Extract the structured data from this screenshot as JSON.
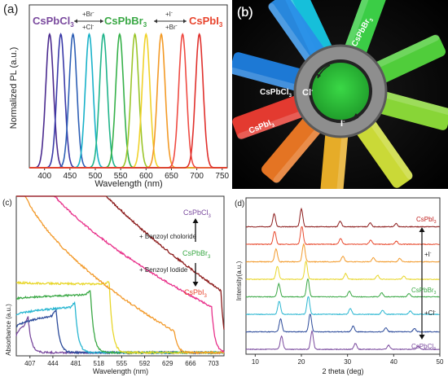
{
  "chart_data": [
    {
      "panel": "(a)",
      "type": "line",
      "xlabel": "Wavelength (nm)",
      "ylabel": "Normalized PL (a.u.)",
      "xlim": [
        370,
        760
      ],
      "ylim": [
        0,
        1.1
      ],
      "xticks": [
        400,
        450,
        500,
        550,
        600,
        650,
        700,
        750
      ],
      "fwhm_nm": 18,
      "series": [
        {
          "peak": 410,
          "color": "#4b2b8f"
        },
        {
          "peak": 432,
          "color": "#3a3aa8"
        },
        {
          "peak": 456,
          "color": "#2e5fb5"
        },
        {
          "peak": 488,
          "color": "#19b2c9"
        },
        {
          "peak": 516,
          "color": "#20b48a"
        },
        {
          "peak": 548,
          "color": "#36b14a"
        },
        {
          "peak": 578,
          "color": "#9bc52b"
        },
        {
          "peak": 600,
          "color": "#f0d22b"
        },
        {
          "peak": 630,
          "color": "#f39a26"
        },
        {
          "peak": 672,
          "color": "#ef4b43"
        },
        {
          "peak": 705,
          "color": "#e0302c"
        }
      ],
      "annotations": {
        "left_name": "CsPbCl",
        "left_sub": "3",
        "mid_name": "CsPbBr",
        "mid_sub": "3",
        "right_name": "CsPbI",
        "right_sub": "3",
        "a1_top": "+Br",
        "a1_top_sup": "-",
        "a1_bot": "+Cl",
        "a1_bot_sup": "-",
        "a2_top": "+I",
        "a2_top_sup": "-",
        "a2_bot": "+Br",
        "a2_bot_sup": "-"
      },
      "colors": {
        "left": "#7a4a9e",
        "mid": "#3aa845",
        "right": "#e8452e"
      }
    },
    {
      "panel": "(b)",
      "type": "photo",
      "labels": {
        "br": "CsPbBr",
        "br_sub": "3",
        "cl": "CsPbCl",
        "cl_sub": "3",
        "i": "CsPbI",
        "i_sub": "3",
        "cl_arrow": "Cl",
        "cl_arrow_sup": "-",
        "i_arrow": "I",
        "i_arrow_sup": "-"
      }
    },
    {
      "panel": "(c)",
      "type": "line",
      "xlabel": "Wavelength (nm)",
      "ylabel": "Absorbance (a.u.)",
      "xlim": [
        385,
        720
      ],
      "xticks": [
        407,
        444,
        481,
        518,
        555,
        592,
        629,
        666,
        703
      ],
      "annotations": {
        "top": "CsPbCl",
        "top_sub": "3",
        "plus_chloride": "+ Benzoyl choloride",
        "mid": "CsPbBr",
        "mid_sub": "3",
        "plus_iodide": "+ Benzoyl Iodide",
        "bottom": "CsPbI",
        "bottom_sub": "3"
      },
      "series": [
        {
          "color": "#7a4a9e",
          "edge": 405
        },
        {
          "color": "#2b4a9a",
          "edge": 450
        },
        {
          "color": "#29b6d1",
          "edge": 480
        },
        {
          "color": "#3aa845",
          "edge": 505
        },
        {
          "color": "#e8d62a",
          "edge": 535
        },
        {
          "color": "#f29a2b",
          "edge": 640
        },
        {
          "color": "#e8308a",
          "edge": 700
        },
        {
          "color": "#8b1a1a",
          "edge": 715
        }
      ]
    },
    {
      "panel": "(d)",
      "type": "line",
      "xlabel": "2 theta (deg)",
      "ylabel": "Intensity(a.u.)",
      "xlim": [
        8,
        50
      ],
      "xticks": [
        10,
        20,
        30,
        40,
        50
      ],
      "labels": {
        "top": "CsPbI",
        "top_sub": "3",
        "plus_i": "+I",
        "plus_i_sup": "-",
        "mid": "CsPbBr",
        "mid_sub": "3",
        "plus_cl": "+Cl",
        "plus_cl_sup": "-",
        "bottom": "CsPbCl",
        "bottom_sub": "3"
      },
      "series": [
        {
          "color": "#7a4a9e",
          "peaks": [
            15.7,
            22.3,
            31.7,
            38.9,
            45.3
          ]
        },
        {
          "color": "#2b4a9a",
          "peaks": [
            15.5,
            21.9,
            31.2,
            38.3,
            44.5
          ]
        },
        {
          "color": "#29b6d1",
          "peaks": [
            15.2,
            21.5,
            30.6,
            37.6,
            43.6
          ]
        },
        {
          "color": "#3aa845",
          "peaks": [
            15.1,
            21.4,
            30.4,
            37.4,
            43.3
          ]
        },
        {
          "color": "#e8d62a",
          "peaks": [
            14.8,
            21.0,
            29.6,
            36.5,
            42.2
          ]
        },
        {
          "color": "#f29a2b",
          "peaks": [
            14.5,
            20.5,
            29.0,
            35.6,
            41.3
          ]
        },
        {
          "color": "#e84a2e",
          "peaks": [
            14.2,
            20.1,
            28.5,
            35.0,
            40.6
          ]
        },
        {
          "color": "#8b1a1a",
          "peaks": [
            14.1,
            20.0,
            28.4,
            34.9,
            40.5
          ]
        }
      ]
    }
  ]
}
